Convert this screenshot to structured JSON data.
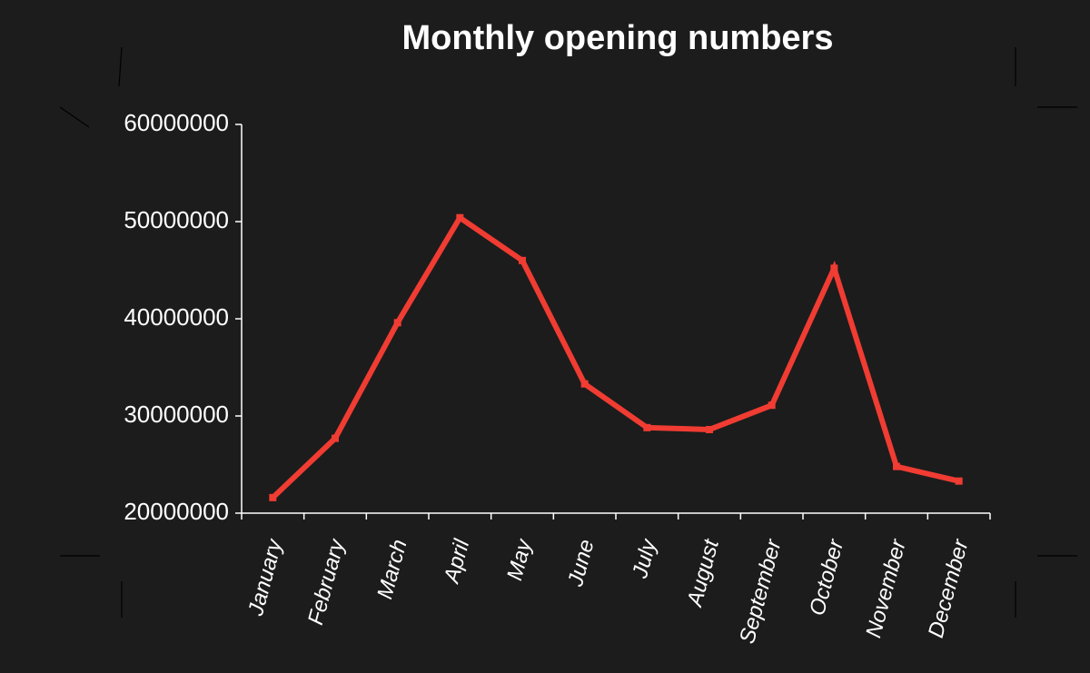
{
  "chart_data": {
    "type": "line",
    "title": "Monthly opening numbers",
    "categories": [
      "January",
      "February",
      "March",
      "April",
      "May",
      "June",
      "July",
      "August",
      "September",
      "October",
      "November",
      "December"
    ],
    "values": [
      21600000,
      27700000,
      39600000,
      50400000,
      46000000,
      33300000,
      28800000,
      28600000,
      31100000,
      45200000,
      24800000,
      23300000
    ],
    "color": "#f03c32",
    "ylim": [
      20000000,
      60000000
    ],
    "yticks": [
      20000000,
      30000000,
      40000000,
      50000000,
      60000000
    ]
  }
}
